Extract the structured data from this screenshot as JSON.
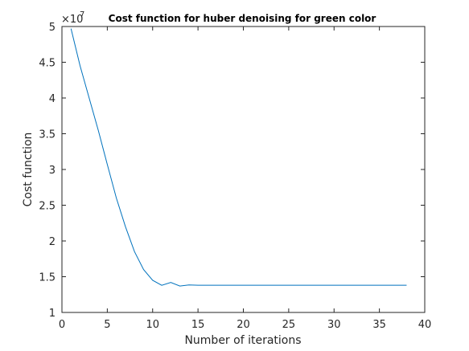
{
  "chart_data": {
    "type": "line",
    "title": "Cost function for huber denoising for green color",
    "xlabel": "Number of iterations",
    "ylabel": "Cost function",
    "xlim": [
      0,
      40
    ],
    "ylim": [
      1,
      5
    ],
    "y_exponent_base": "×10",
    "y_exponent_power": "7",
    "x_ticks": [
      0,
      5,
      10,
      15,
      20,
      25,
      30,
      35,
      40
    ],
    "x_tick_labels": [
      "0",
      "5",
      "10",
      "15",
      "20",
      "25",
      "30",
      "35",
      "40"
    ],
    "y_ticks": [
      1,
      1.5,
      2,
      2.5,
      3,
      3.5,
      4,
      4.5,
      5
    ],
    "y_tick_labels": [
      "1",
      "1.5",
      "2",
      "2.5",
      "3",
      "3.5",
      "4",
      "4.5",
      "5"
    ],
    "grid": false,
    "line_color": "#0072BD",
    "series": [
      {
        "x": [
          1,
          2,
          3,
          4,
          5,
          6,
          7,
          8,
          9,
          10,
          11,
          12,
          13,
          14,
          15,
          16,
          17,
          18,
          19,
          20,
          21,
          22,
          23,
          24,
          25,
          26,
          27,
          28,
          29,
          30,
          31,
          32,
          33,
          34,
          35,
          36,
          37,
          38
        ],
        "values": [
          4.97,
          4.45,
          4.0,
          3.55,
          3.07,
          2.6,
          2.2,
          1.85,
          1.6,
          1.45,
          1.38,
          1.42,
          1.37,
          1.385,
          1.38,
          1.38,
          1.38,
          1.38,
          1.38,
          1.38,
          1.38,
          1.38,
          1.38,
          1.38,
          1.38,
          1.38,
          1.38,
          1.38,
          1.38,
          1.38,
          1.38,
          1.38,
          1.38,
          1.38,
          1.38,
          1.38,
          1.38,
          1.38
        ]
      }
    ]
  }
}
